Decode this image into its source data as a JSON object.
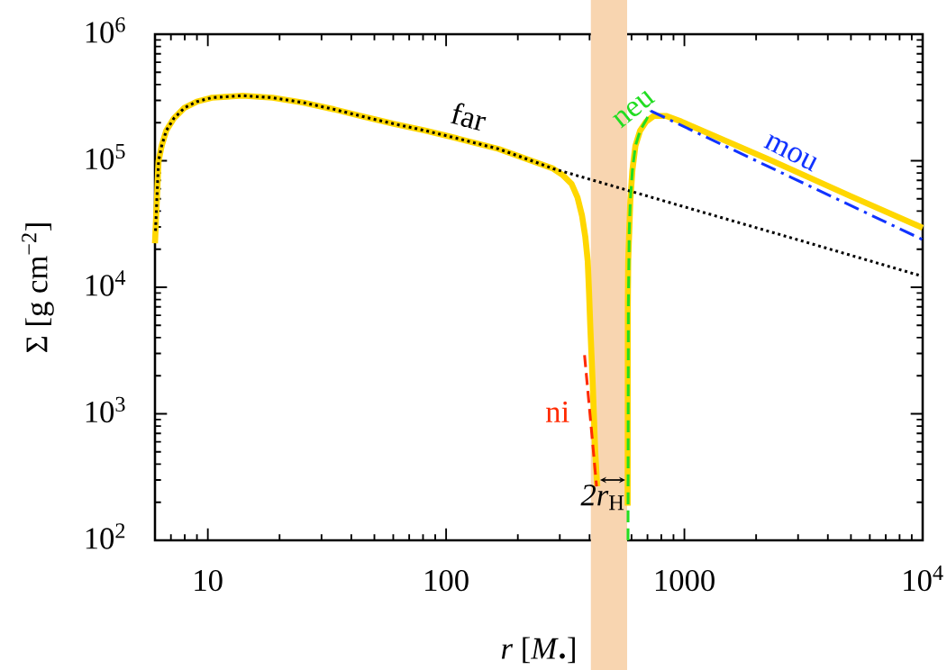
{
  "chart_data": {
    "type": "line",
    "xlabel": "*r*  [*M*$_{•}$]",
    "ylabel": "Σ  [g cm$^{−2}$]",
    "log": "xy",
    "xlim": [
      6,
      10000
    ],
    "ylim": [
      100,
      1000000
    ],
    "xticks": [
      10,
      100,
      1000,
      {
        "value": 10000,
        "label": "10$^{4}$"
      }
    ],
    "yticks": [
      {
        "value": 100,
        "label": "10$^{2}$"
      },
      {
        "value": 1000,
        "label": "10$^{3}$"
      },
      {
        "value": 10000,
        "label": "10$^{4}$"
      },
      {
        "value": 100000,
        "label": "10$^{5}$"
      },
      {
        "value": 1000000,
        "label": "10$^{6}$"
      }
    ],
    "series": [
      {
        "color": "#ffd700",
        "line_style": "solid",
        "x": [
          6.0,
          6.21,
          6.4,
          6.69,
          7.2,
          7.98,
          8.98,
          10.4,
          14.0,
          18.7,
          25.2,
          33.8,
          45.4,
          60.9,
          81.8,
          110,
          166,
          222,
          281,
          307,
          336,
          356,
          372,
          384,
          393,
          398,
          403,
          413,
          422,
          429,
          431,
          500,
          578,
          579,
          581,
          587,
          593,
          605,
          623,
          652,
          691,
          744,
          837,
          970,
          2340,
          5000,
          10000
        ],
        "values": [
          22300,
          99500,
          131000,
          173000,
          216000,
          262000,
          293000,
          315000,
          327000,
          315000,
          288000,
          255000,
          222000,
          195000,
          173000,
          151000,
          124000,
          102000,
          86700,
          77600,
          65800,
          51300,
          36700,
          24900,
          16100,
          9200,
          4800,
          1600,
          525,
          301,
          267,
          null,
          188,
          7380,
          16100,
          27900,
          48400,
          84100,
          131000,
          173000,
          204000,
          226000,
          226000,
          204000,
          99500,
          52400,
          29500
        ]
      },
      {
        "name": "far",
        "color": "#000000",
        "line_style": "dotted",
        "x": [
          6.03,
          6.21,
          6.4,
          6.69,
          7.2,
          7.98,
          8.98,
          10.4,
          14.0,
          18.7,
          25.2,
          33.8,
          45.4,
          60.9,
          81.8,
          110,
          166,
          222,
          281,
          1000,
          3000,
          10000
        ],
        "values": [
          27900,
          99500,
          131000,
          173000,
          216000,
          262000,
          293000,
          315000,
          327000,
          315000,
          288000,
          255000,
          222000,
          195000,
          173000,
          151000,
          124000,
          102000,
          86700,
          43200,
          23700,
          12200
        ]
      },
      {
        "name": "ni",
        "color": "#ff2a00",
        "line_style": "dashed",
        "x": [
          381,
          404,
          428
        ],
        "values": [
          2910,
          880,
          267
        ]
      },
      {
        "name": "neu",
        "color": "#22dd22",
        "line_style": "dashed",
        "x": [
          580,
          581,
          582,
          587,
          593,
          605,
          623,
          652,
          691,
          722
        ],
        "values": [
          100,
          1000,
          7400,
          27900,
          48400,
          84100,
          131000,
          173000,
          210000,
          248000
        ]
      },
      {
        "name": "mou",
        "color": "#1133ff",
        "line_style": "dashdot",
        "x": [
          722,
          2800,
          10000
        ],
        "values": [
          248000,
          74100,
          23800
        ]
      }
    ],
    "bands": [
      {
        "axis": "x",
        "from": 405,
        "to": 575,
        "color": "#f8d5b0"
      }
    ],
    "annotations": [
      "*2r*$_{H}$"
    ]
  }
}
